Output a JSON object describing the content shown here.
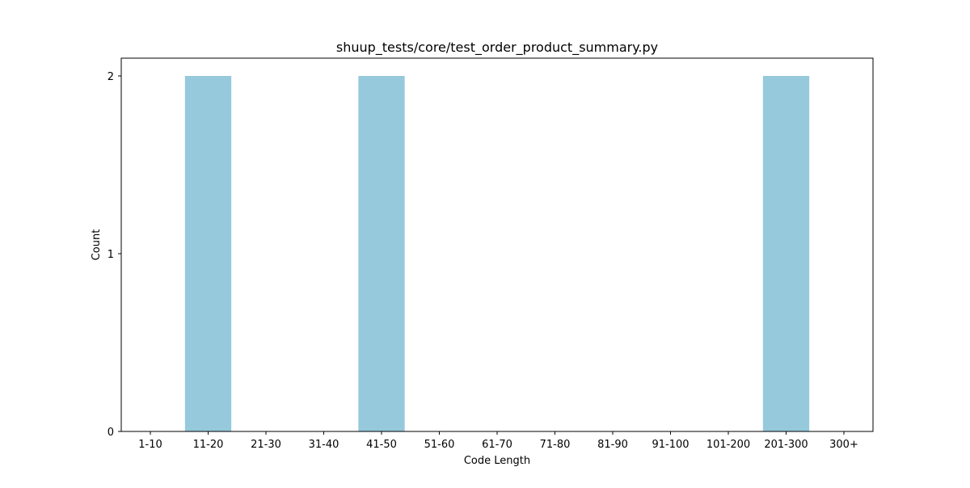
{
  "chart_data": {
    "type": "bar",
    "title": "shuup_tests/core/test_order_product_summary.py",
    "xlabel": "Code Length",
    "ylabel": "Count",
    "categories": [
      "1-10",
      "11-20",
      "21-30",
      "31-40",
      "41-50",
      "51-60",
      "61-70",
      "71-80",
      "81-90",
      "91-100",
      "101-200",
      "201-300",
      "300+"
    ],
    "values": [
      0,
      2,
      0,
      0,
      2,
      0,
      0,
      0,
      0,
      0,
      0,
      2,
      0
    ],
    "yticks": [
      "0",
      "1",
      "2"
    ],
    "ylim": [
      0,
      2.1
    ],
    "grid": false,
    "bar_color": "#96c9dc"
  }
}
